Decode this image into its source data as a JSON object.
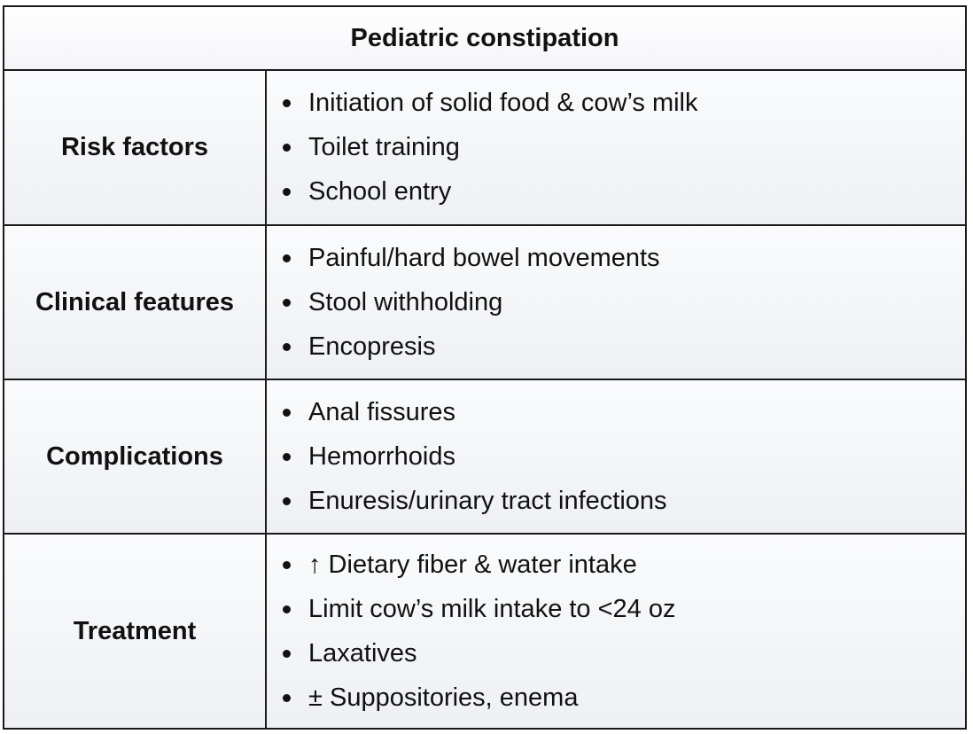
{
  "title": "Pediatric constipation",
  "rows": [
    {
      "label": "Risk factors",
      "items": [
        "Initiation of solid food & cow’s milk",
        "Toilet training",
        "School entry"
      ]
    },
    {
      "label": "Clinical features",
      "items": [
        "Painful/hard bowel movements",
        "Stool withholding",
        "Encopresis"
      ]
    },
    {
      "label": "Complications",
      "items": [
        "Anal fissures",
        "Hemorrhoids",
        "Enuresis/urinary tract infections"
      ]
    },
    {
      "label": "Treatment",
      "items": [
        "↑ Dietary fiber & water intake",
        "Limit cow’s milk intake to <24 oz",
        "Laxatives",
        "± Suppositories, enema"
      ]
    }
  ]
}
